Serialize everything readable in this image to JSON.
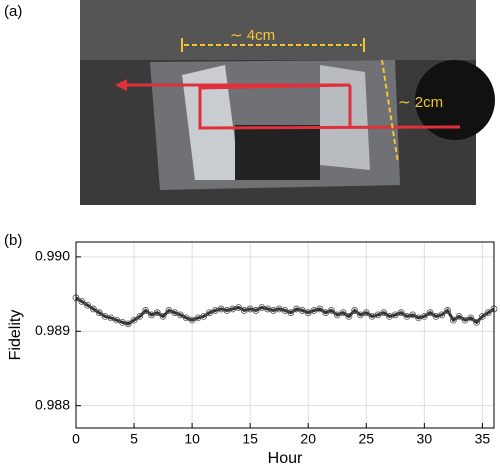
{
  "photo": {
    "label": "(a)",
    "annotations": [
      "∼ 4cm",
      "∼ 2cm"
    ]
  },
  "chart_data": {
    "type": "scatter",
    "panel_label": "(b)",
    "xlabel": "Hour",
    "ylabel": "Fidelity",
    "color": "#555555",
    "x": [
      0,
      0.5,
      1,
      1.5,
      2,
      2.5,
      3,
      3.5,
      4,
      4.5,
      5,
      5.5,
      6,
      6.5,
      7,
      7.5,
      8,
      8.5,
      9,
      9.5,
      10,
      10.5,
      11,
      11.5,
      12,
      12.5,
      13,
      13.5,
      14,
      14.5,
      15,
      15.5,
      16,
      16.5,
      17,
      17.5,
      18,
      18.5,
      19,
      19.5,
      20,
      20.5,
      21,
      21.5,
      22,
      22.5,
      23,
      23.5,
      24,
      24.5,
      25,
      25.5,
      26,
      26.5,
      27,
      27.5,
      28,
      28.5,
      29,
      29.5,
      30,
      30.5,
      31,
      31.5,
      32,
      32.5,
      33,
      33.5,
      34,
      34.5,
      35,
      35.5,
      36
    ],
    "values": [
      0.98945,
      0.9894,
      0.98935,
      0.9893,
      0.98925,
      0.9892,
      0.98918,
      0.98915,
      0.98912,
      0.9891,
      0.98915,
      0.9892,
      0.98928,
      0.98922,
      0.98925,
      0.9892,
      0.98928,
      0.98925,
      0.98922,
      0.98918,
      0.98915,
      0.98918,
      0.9892,
      0.98925,
      0.98928,
      0.9893,
      0.98928,
      0.9893,
      0.98932,
      0.98928,
      0.9893,
      0.98928,
      0.98932,
      0.9893,
      0.98928,
      0.9893,
      0.98928,
      0.98925,
      0.9893,
      0.98928,
      0.98925,
      0.98928,
      0.9893,
      0.98925,
      0.98928,
      0.98922,
      0.98925,
      0.9892,
      0.98928,
      0.98922,
      0.98925,
      0.9892,
      0.98922,
      0.98925,
      0.9892,
      0.98922,
      0.98925,
      0.9892,
      0.98922,
      0.98918,
      0.9892,
      0.98925,
      0.9892,
      0.98922,
      0.98928,
      0.98915,
      0.9892,
      0.98915,
      0.98918,
      0.98912,
      0.9892,
      0.98925,
      0.9893
    ],
    "xlim": [
      0,
      36
    ],
    "xticks": [
      0,
      5,
      10,
      15,
      20,
      25,
      30,
      35
    ],
    "ylim": [
      0.9877,
      0.9902
    ],
    "yticks": [
      0.988,
      0.989,
      {
        "value": 0.99,
        "label": "0.990"
      }
    ],
    "grid": true
  }
}
